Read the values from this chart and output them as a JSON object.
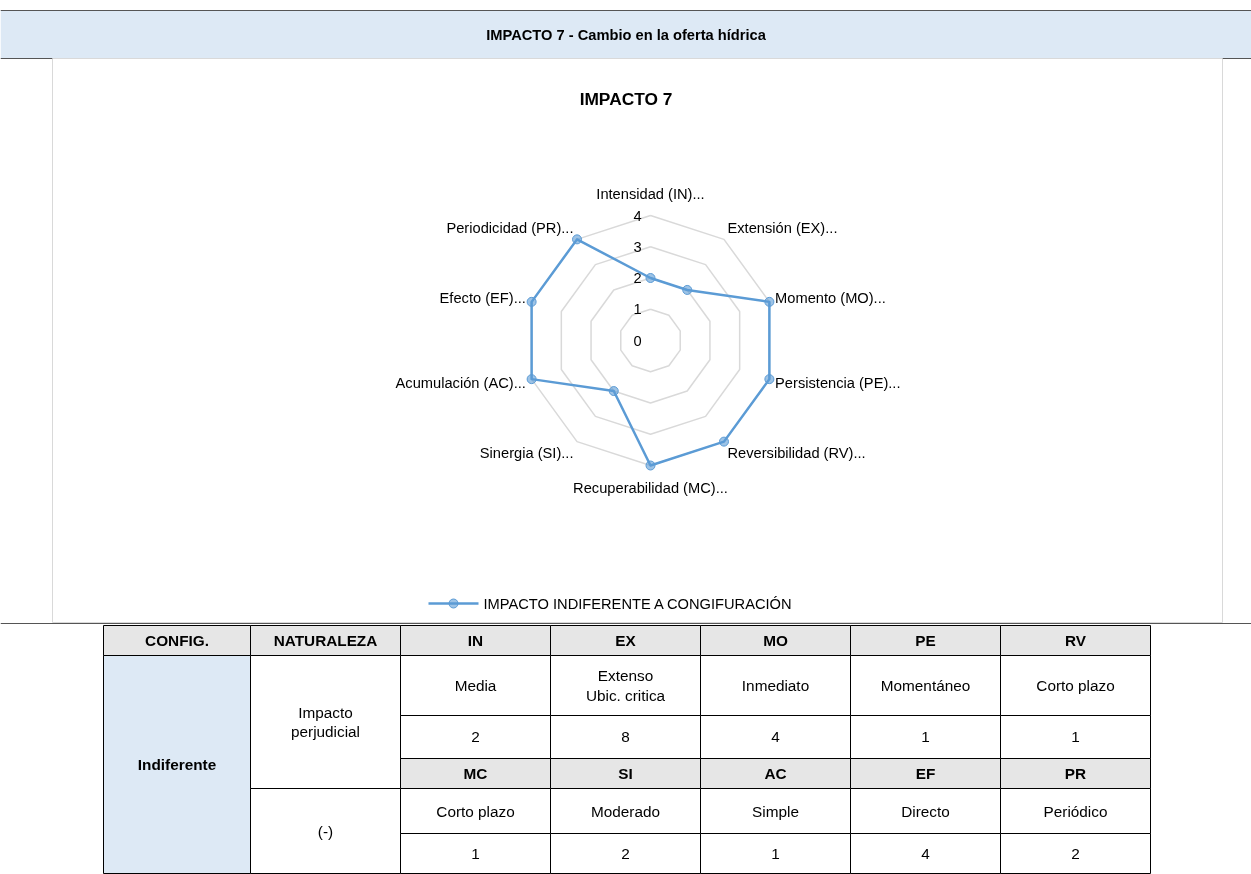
{
  "chart_data": {
    "type": "radar",
    "title": "IMPACTO 7 - Cambio en la oferta hídrica",
    "subtitle": "IMPACTO 7",
    "categories": [
      "Intensidad (IN)...",
      "Extensión (EX)...",
      "Momento (MO)...",
      "Persistencia (PE)...",
      "Reversibilidad (RV)...",
      "Recuperabilidad (MC)...",
      "Sinergia (SI)...",
      "Acumulación (AC)...",
      "Efecto (EF)...",
      "Periodicidad (PR)..."
    ],
    "series": [
      {
        "name": "IMPACTO INDIFERENTE A CONGIFURACIÓN",
        "color": "#5b9bd5",
        "values": [
          2,
          2,
          4,
          4,
          4,
          4,
          2,
          4,
          4,
          4
        ]
      }
    ],
    "ylim": [
      0,
      4
    ],
    "yticks": [
      0,
      1,
      2,
      3,
      4
    ],
    "grid": true,
    "legend": "bottom",
    "marker": "circle",
    "line_style": "solid",
    "annotations": [
      "CONFIG.",
      "NATURALEZA",
      "IN",
      "EX",
      "MO",
      "PE",
      "RV",
      "Indiferente",
      "Impacto\nperjudicial",
      "Media",
      "Extenso\nUbic. critica",
      "Inmediato",
      "Momentáneo",
      "Corto plazo",
      "2",
      "8",
      "4",
      "1",
      "1",
      "MC",
      "SI",
      "AC",
      "EF",
      "PR",
      "(-)",
      "Corto plazo",
      "Moderado",
      "Simple",
      "Directo",
      "Periódico",
      "1",
      "2",
      "1",
      "4",
      "2"
    ]
  }
}
